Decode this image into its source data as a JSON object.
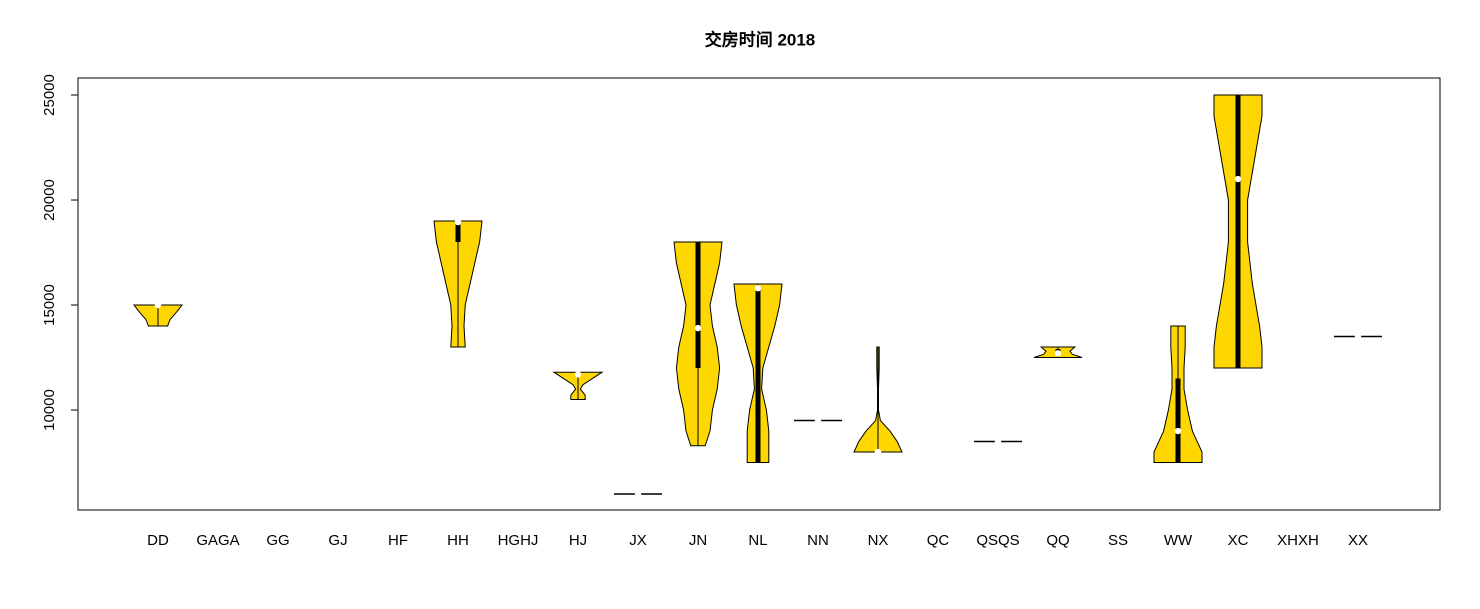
{
  "chart_data": {
    "type": "violin",
    "title": "交房时间 2018",
    "categories": [
      "DD",
      "GAGA",
      "GG",
      "GJ",
      "HF",
      "HH",
      "HGHJ",
      "HJ",
      "JX",
      "JN",
      "NL",
      "NN",
      "NX",
      "QC",
      "QSQS",
      "QQ",
      "SS",
      "WW",
      "XC",
      "XHXH",
      "XX"
    ],
    "color": "#ffd700",
    "ylim": [
      5240,
      25810
    ],
    "yticks": [
      10000,
      15000,
      20000,
      25000
    ],
    "violins": [
      {
        "min": 14000,
        "q1": 14900,
        "median": 15000,
        "q3": 15000,
        "max": 15000,
        "density_y": [
          14000,
          14300,
          14700,
          15000
        ],
        "density_w": [
          0.4,
          0.5,
          0.8,
          1
        ]
      },
      null,
      null,
      null,
      null,
      {
        "min": 13000,
        "q1": 18000,
        "median": 18950,
        "q3": 19000,
        "max": 19000,
        "density_y": [
          13000,
          14000,
          15000,
          16000,
          17000,
          18000,
          19000
        ],
        "density_w": [
          0.3,
          0.25,
          0.3,
          0.5,
          0.7,
          0.9,
          1
        ]
      },
      null,
      {
        "min": 10500,
        "q1": 11600,
        "median": 11700,
        "q3": 11800,
        "max": 11800,
        "density_y": [
          10500,
          10700,
          11000,
          11200,
          11500,
          11800
        ],
        "density_w": [
          0.3,
          0.3,
          0.1,
          0.2,
          0.6,
          1
        ]
      },
      {
        "min": 6000,
        "q1": 6000,
        "median": 6000,
        "q3": 6000,
        "max": 6000,
        "density_y": [
          6000
        ],
        "density_w": [
          1
        ]
      },
      {
        "min": 8300,
        "q1": 12000,
        "median": 13900,
        "q3": 18000,
        "max": 18000,
        "density_y": [
          8300,
          9000,
          10000,
          11000,
          12000,
          13000,
          14000,
          15000,
          16000,
          17000,
          18000
        ],
        "density_w": [
          0.3,
          0.5,
          0.6,
          0.8,
          0.9,
          0.8,
          0.6,
          0.5,
          0.7,
          0.9,
          1
        ]
      },
      {
        "min": 7500,
        "q1": 7500,
        "median": 15800,
        "q3": 15800,
        "max": 16000,
        "density_y": [
          7500,
          8000,
          9000,
          10000,
          11000,
          12000,
          13000,
          14000,
          15000,
          16000
        ],
        "density_w": [
          0.45,
          0.45,
          0.45,
          0.35,
          0.15,
          0.2,
          0.45,
          0.7,
          0.9,
          1
        ]
      },
      {
        "min": 9500,
        "q1": 9500,
        "median": 9500,
        "q3": 9500,
        "max": 9500,
        "density_y": [
          9500
        ],
        "density_w": [
          1
        ]
      },
      {
        "min": 8000,
        "q1": 8000,
        "median": 8000,
        "q3": 8000,
        "max": 13000,
        "density_y": [
          8000,
          8500,
          9000,
          9500,
          10000,
          11000,
          12000,
          13000
        ],
        "density_w": [
          1,
          0.8,
          0.5,
          0.1,
          0.02,
          0.02,
          0.05,
          0.05
        ]
      },
      null,
      {
        "min": 8500,
        "q1": 8500,
        "median": 8500,
        "q3": 8500,
        "max": 8500,
        "density_y": [
          8500
        ],
        "density_w": [
          1
        ]
      },
      {
        "min": 12500,
        "q1": 12600,
        "median": 12700,
        "q3": 12900,
        "max": 13000,
        "density_y": [
          12500,
          12650,
          12800,
          13000
        ],
        "density_w": [
          1,
          0.6,
          0.5,
          0.7
        ]
      },
      null,
      {
        "min": 7500,
        "q1": 7500,
        "median": 9000,
        "q3": 11500,
        "max": 14000,
        "density_y": [
          7500,
          8000,
          8500,
          9000,
          10000,
          11000,
          12000,
          13000,
          14000
        ],
        "density_w": [
          1,
          1,
          0.8,
          0.6,
          0.4,
          0.25,
          0.25,
          0.3,
          0.3
        ]
      },
      {
        "min": 12000,
        "q1": 12000,
        "median": 21000,
        "q3": 25000,
        "max": 25000,
        "density_y": [
          12000,
          13000,
          14000,
          16000,
          18000,
          20000,
          22000,
          24000,
          25000
        ],
        "density_w": [
          1,
          1,
          0.9,
          0.6,
          0.4,
          0.4,
          0.7,
          1,
          1
        ]
      },
      null,
      {
        "min": 13500,
        "q1": 13500,
        "median": 13500,
        "q3": 13500,
        "max": 13500,
        "density_y": [
          13500
        ],
        "density_w": [
          1
        ]
      }
    ]
  }
}
